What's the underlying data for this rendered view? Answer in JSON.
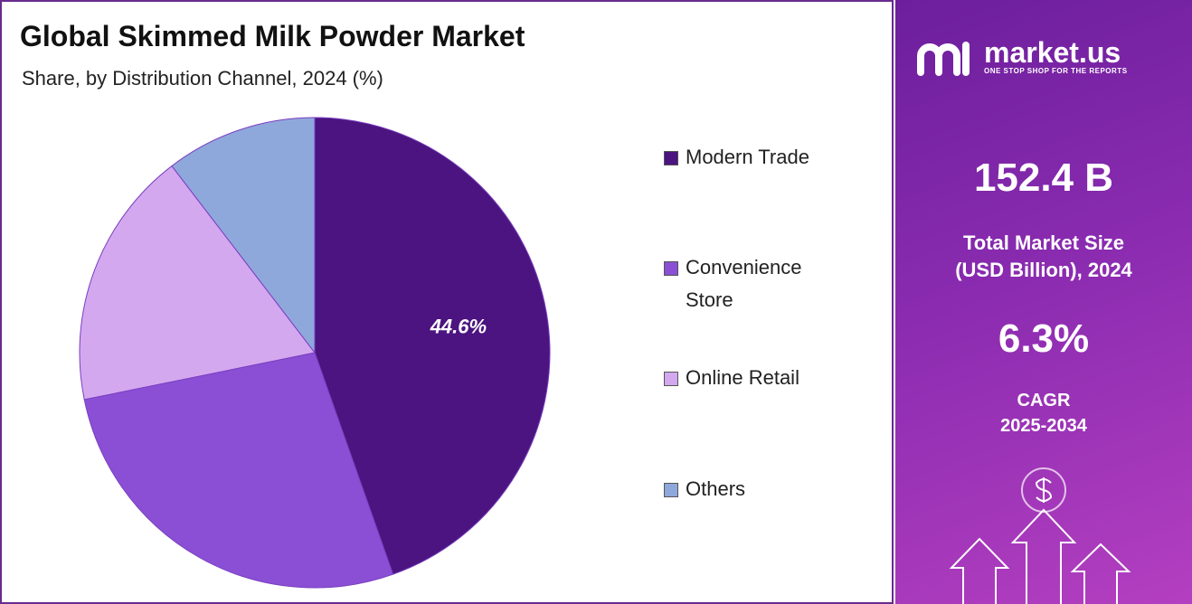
{
  "chart_data": {
    "type": "pie",
    "title": "Global Skimmed Milk Powder Market",
    "subtitle": "Share, by Distribution Channel, 2024 (%)",
    "categories": [
      "Modern Trade",
      "Convenience Store",
      "Online Retail",
      "Others"
    ],
    "values": [
      44.6,
      27.2,
      17.8,
      10.4
    ],
    "value_labels": [
      "44.6%",
      null,
      null,
      null
    ],
    "colors": [
      "#4b1480",
      "#8a4fd4",
      "#d4a8ef",
      "#8fa8dc"
    ]
  },
  "side_panel": {
    "brand": "market.us",
    "tagline": "ONE STOP SHOP FOR THE REPORTS",
    "market_size": "152.4 B",
    "market_size_label": [
      "Total Market Size",
      "(USD Billion), 2024"
    ],
    "cagr": "6.3%",
    "cagr_label": [
      "CAGR",
      "2025-2034"
    ]
  }
}
